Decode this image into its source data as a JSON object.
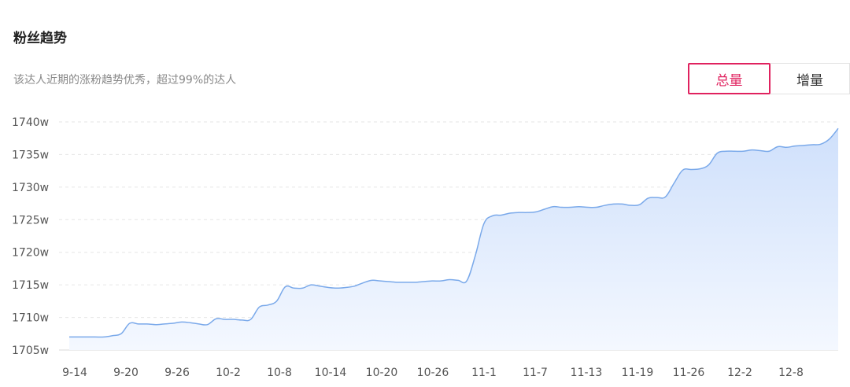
{
  "header": {
    "title": "粉丝趋势",
    "subtitle": "该达人近期的涨粉趋势优秀，超过99%的达人"
  },
  "toggle": {
    "total_label": "总量",
    "increment_label": "增量",
    "active": "total"
  },
  "colors": {
    "accent": "#e0225f",
    "line": "#7aa9ea",
    "area_top": "#cfe0fb",
    "area_bottom": "#f4f8ff",
    "grid": "#e6e6e6"
  },
  "chart_data": {
    "type": "area",
    "unit": "w",
    "ylim": [
      1705,
      1740
    ],
    "y_ticks": [
      1705,
      1710,
      1715,
      1720,
      1725,
      1730,
      1735,
      1740
    ],
    "y_tick_labels": [
      "1705w",
      "1710w",
      "1715w",
      "1720w",
      "1725w",
      "1730w",
      "1735w",
      "1740w"
    ],
    "x_tick_labels": [
      "9-14",
      "9-20",
      "9-26",
      "10-2",
      "10-8",
      "10-14",
      "10-20",
      "10-26",
      "11-1",
      "11-7",
      "11-13",
      "11-19",
      "11-26",
      "12-2",
      "12-8"
    ],
    "grid": true,
    "series": [
      {
        "values": [
          1707.0,
          1707.0,
          1707.0,
          1707.0,
          1707.0,
          1707.2,
          1707.5,
          1709.1,
          1709.0,
          1709.0,
          1708.9,
          1709.0,
          1709.1,
          1709.3,
          1709.2,
          1709.0,
          1708.9,
          1709.8,
          1709.7,
          1709.7,
          1709.6,
          1709.7,
          1711.6,
          1711.9,
          1712.5,
          1714.7,
          1714.5,
          1714.5,
          1715.0,
          1714.8,
          1714.6,
          1714.5,
          1714.6,
          1714.8,
          1715.3,
          1715.7,
          1715.6,
          1715.5,
          1715.4,
          1715.4,
          1715.4,
          1715.5,
          1715.6,
          1715.6,
          1715.8,
          1715.7,
          1715.6,
          1719.5,
          1724.4,
          1725.6,
          1725.7,
          1726.0,
          1726.1,
          1726.1,
          1726.2,
          1726.6,
          1727.0,
          1726.9,
          1726.9,
          1727.0,
          1726.9,
          1726.9,
          1727.2,
          1727.4,
          1727.4,
          1727.2,
          1727.3,
          1728.3,
          1728.4,
          1728.5,
          1730.6,
          1732.6,
          1732.7,
          1732.8,
          1733.4,
          1735.2,
          1735.5,
          1735.5,
          1735.5,
          1735.7,
          1735.6,
          1735.5,
          1736.2,
          1736.1,
          1736.3,
          1736.4,
          1736.5,
          1736.6,
          1737.4,
          1739.0
        ]
      }
    ]
  }
}
